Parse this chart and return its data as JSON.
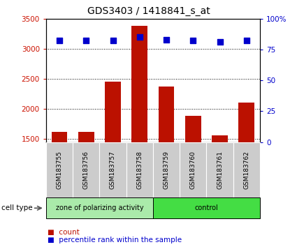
{
  "title": "GDS3403 / 1418841_s_at",
  "samples": [
    "GSM183755",
    "GSM183756",
    "GSM183757",
    "GSM183758",
    "GSM183759",
    "GSM183760",
    "GSM183761",
    "GSM183762"
  ],
  "counts": [
    1620,
    1620,
    2450,
    3380,
    2370,
    1880,
    1560,
    2100
  ],
  "percentiles": [
    82,
    82,
    82,
    85,
    83,
    82,
    81,
    82
  ],
  "groups": [
    {
      "label": "zone of polarizing activity",
      "start": 0,
      "end": 4,
      "color": "#aaeaaa"
    },
    {
      "label": "control",
      "start": 4,
      "end": 8,
      "color": "#44dd44"
    }
  ],
  "ylim_left": [
    1450,
    3500
  ],
  "ylim_right": [
    0,
    100
  ],
  "yticks_left": [
    1500,
    2000,
    2500,
    3000,
    3500
  ],
  "yticks_right": [
    0,
    25,
    50,
    75,
    100
  ],
  "bar_color": "#bb1100",
  "dot_color": "#0000cc",
  "dot_size": 28,
  "bar_width": 0.6,
  "background_color": "#ffffff",
  "plot_bg_color": "#ffffff",
  "grid_color": "#000000",
  "label_color_left": "#cc1100",
  "label_color_right": "#0000cc",
  "cell_type_label": "cell type",
  "legend_count": "count",
  "legend_percentile": "percentile rank within the sample",
  "box_color": "#cccccc",
  "title_fontsize": 10
}
